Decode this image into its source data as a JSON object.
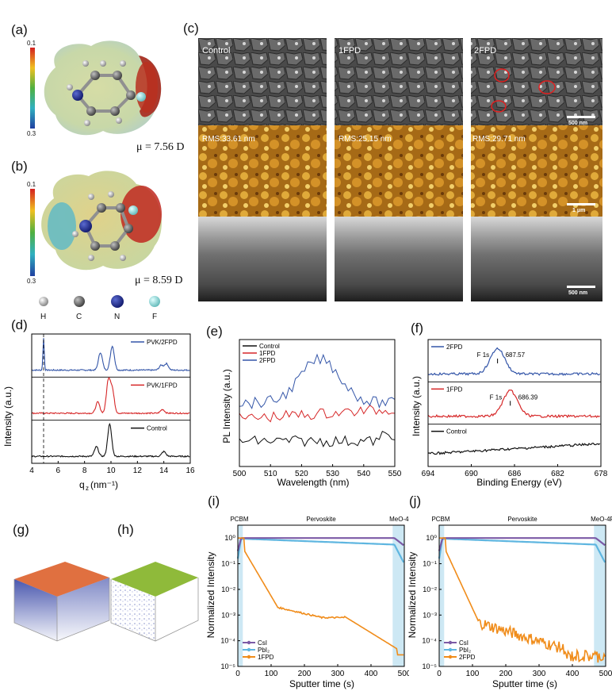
{
  "panels": {
    "a": "(a)",
    "b": "(b)",
    "c": "(c)",
    "d": "(d)",
    "e": "(e)",
    "f": "(f)",
    "g": "(g)",
    "h": "(h)",
    "i": "(i)",
    "j": "(j)"
  },
  "esp": {
    "scale_top": "0.1",
    "scale_bottom": "0.3",
    "a_dipole": "μ = 7.56 D",
    "b_dipole": "μ = 8.59 D",
    "atoms": [
      "H",
      "C",
      "N",
      "F"
    ]
  },
  "sem": {
    "columns": [
      "Control",
      "1FPD",
      "2FPD"
    ],
    "rms": [
      "RMS:33.61 nm",
      "RMS:25.15 nm",
      "RMS:29.71 nm"
    ],
    "scale_top": "500 nm",
    "scale_mid": "1 μm",
    "scale_bot": "500 nm"
  },
  "colors": {
    "control": "#111111",
    "fpd1": "#d62728",
    "fpd2": "#3355a8",
    "csi": "#7b5aa6",
    "pbi2": "#5fb6e0",
    "orange": "#f08c1a"
  },
  "chart_data": [
    {
      "id": "d",
      "type": "line",
      "xlabel": "q",
      "xlabel_sub": "z",
      "xlabel_unit": " (nm⁻¹)",
      "ylabel": "Intensity (a.u.)",
      "xlim": [
        4,
        16
      ],
      "xticks": [
        "4",
        "6",
        "8",
        "10",
        "12",
        "14",
        "16"
      ],
      "series": [
        {
          "name": "PVK/2FPD",
          "color": "#3355a8",
          "peaks": [
            [
              4.9,
              1.0
            ],
            [
              9.2,
              0.55
            ],
            [
              10.1,
              0.75
            ],
            [
              13.8,
              0.15
            ],
            [
              14.2,
              0.2
            ]
          ]
        },
        {
          "name": "PVK/1FPD",
          "color": "#d62728",
          "peaks": [
            [
              9.0,
              0.35
            ],
            [
              9.8,
              1.0
            ],
            [
              10.1,
              0.7
            ],
            [
              13.9,
              0.12
            ]
          ]
        },
        {
          "name": "Control",
          "color": "#111111",
          "peaks": [
            [
              8.9,
              0.3
            ],
            [
              9.9,
              1.0
            ],
            [
              14.0,
              0.15
            ]
          ]
        }
      ]
    },
    {
      "id": "e",
      "type": "line",
      "xlabel": "Wavelength (nm)",
      "ylabel": "PL Intensity (a.u.)",
      "xlim": [
        500,
        550
      ],
      "xticks": [
        "500",
        "510",
        "520",
        "530",
        "540",
        "550"
      ],
      "series": [
        {
          "name": "Control",
          "color": "#111111"
        },
        {
          "name": "1FPD",
          "color": "#d62728"
        },
        {
          "name": "2FPD",
          "color": "#3355a8"
        }
      ]
    },
    {
      "id": "f",
      "type": "line",
      "xlabel": "Binding Energy (eV)",
      "ylabel": "Intensity (a.u.)",
      "xlim": [
        694,
        678
      ],
      "xticks": [
        "694",
        "690",
        "686",
        "682",
        "678"
      ],
      "series": [
        {
          "name": "2FPD",
          "color": "#3355a8",
          "peak": 687.57,
          "peak_label": "687.57",
          "label": "F 1s"
        },
        {
          "name": "1FPD",
          "color": "#d62728",
          "peak": 686.39,
          "peak_label": "686.39",
          "label": "F 1s"
        },
        {
          "name": "Control",
          "color": "#111111"
        }
      ]
    },
    {
      "id": "i",
      "type": "line",
      "xlabel": "Sputter time (s)",
      "ylabel": "Normalized Intensity",
      "xlim": [
        0,
        500
      ],
      "xticks": [
        "0",
        "100",
        "200",
        "300",
        "400",
        "500"
      ],
      "ylim_log": [
        -5,
        0.5
      ],
      "yticks": [
        "10⁰",
        "10⁻¹",
        "10⁻²",
        "10⁻³",
        "10⁻⁴",
        "10⁻⁵"
      ],
      "regions": [
        "PCBM",
        "Pervoskite",
        "MeO-4P"
      ],
      "series": [
        {
          "name": "CsI",
          "color": "#7b5aa6"
        },
        {
          "name": "PbI₂",
          "color": "#5fb6e0"
        },
        {
          "name": "1FPD",
          "color": "#f08c1a"
        }
      ]
    },
    {
      "id": "j",
      "type": "line",
      "xlabel": "Sputter time (s)",
      "ylabel": "Normalized Intensity",
      "xlim": [
        0,
        500
      ],
      "xticks": [
        "0",
        "100",
        "200",
        "300",
        "400",
        "500"
      ],
      "ylim_log": [
        -5,
        0.5
      ],
      "yticks": [
        "10⁰",
        "10⁻¹",
        "10⁻²",
        "10⁻³",
        "10⁻⁴",
        "10⁻⁵"
      ],
      "regions": [
        "PCBM",
        "Pervoskite",
        "MeO-4P"
      ],
      "series": [
        {
          "name": "CsI",
          "color": "#7b5aa6"
        },
        {
          "name": "PbI₂",
          "color": "#5fb6e0"
        },
        {
          "name": "2FPD",
          "color": "#f08c1a"
        }
      ]
    }
  ]
}
